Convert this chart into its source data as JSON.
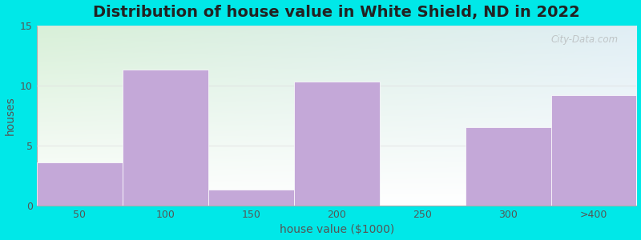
{
  "title": "Distribution of house value in White Shield, ND in 2022",
  "xlabel": "house value ($1000)",
  "ylabel": "houses",
  "categories": [
    "50",
    "100",
    "150",
    "200",
    "250",
    "300",
    ">400"
  ],
  "values": [
    3.6,
    11.3,
    1.3,
    10.3,
    0,
    6.5,
    9.2
  ],
  "bar_color": "#c4a8d8",
  "ylim": [
    0,
    15
  ],
  "yticks": [
    0,
    5,
    10,
    15
  ],
  "background_outer": "#00e8e8",
  "gradient_top_left": "#d8f0d8",
  "gradient_top_right": "#e0eef5",
  "gradient_bottom": "#ffffff",
  "title_fontsize": 14,
  "axis_label_fontsize": 10,
  "tick_fontsize": 9,
  "watermark": "City-Data.com"
}
